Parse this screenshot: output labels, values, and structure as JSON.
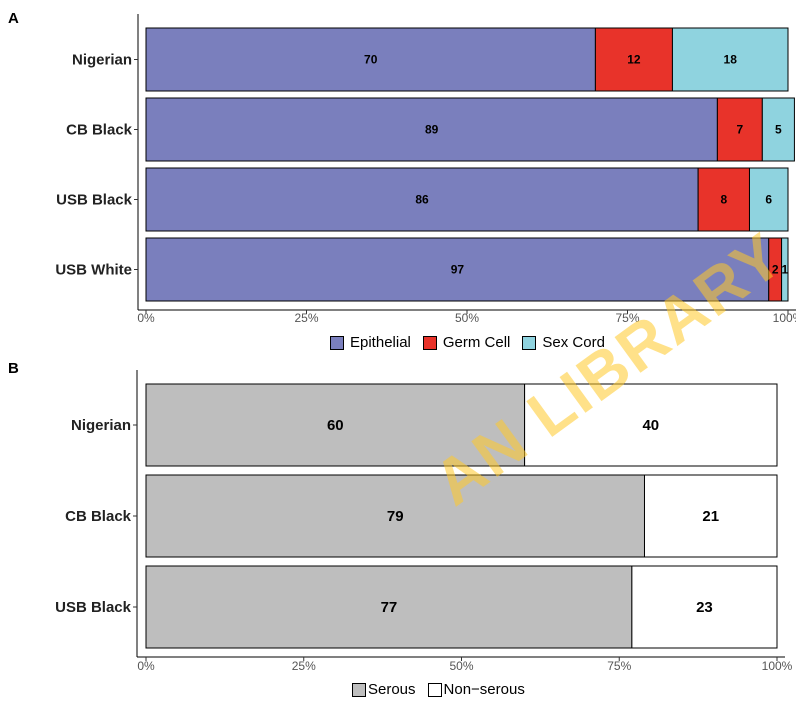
{
  "panels": {
    "a_label": "A",
    "b_label": "B"
  },
  "colors": {
    "epithelial": "#7a7fbd",
    "germ_cell": "#e8332a",
    "sex_cord": "#8fd3df",
    "serous": "#bebebe",
    "non_serous": "#ffffff"
  },
  "chart_data": [
    {
      "type": "bar",
      "orientation": "horizontal",
      "stacked": true,
      "panel": "A",
      "categories": [
        "Nigerian",
        "CB Black",
        "USB Black",
        "USB White"
      ],
      "series": [
        {
          "name": "Epithelial",
          "values": [
            70,
            89,
            86,
            97
          ],
          "color": "#7a7fbd"
        },
        {
          "name": "Germ Cell",
          "values": [
            12,
            7,
            8,
            2
          ],
          "color": "#e8332a"
        },
        {
          "name": "Sex Cord",
          "values": [
            18,
            5,
            6,
            1
          ],
          "color": "#8fd3df"
        }
      ],
      "xlim": [
        0,
        100
      ],
      "x_ticks": [
        "0%",
        "25%",
        "50%",
        "75%",
        "100%"
      ],
      "data_labels": true,
      "legend": "bottom",
      "grid": false
    },
    {
      "type": "bar",
      "orientation": "horizontal",
      "stacked": true,
      "panel": "B",
      "categories": [
        "Nigerian",
        "CB Black",
        "USB Black"
      ],
      "series": [
        {
          "name": "Serous",
          "values": [
            60,
            79,
            77
          ],
          "color": "#bebebe"
        },
        {
          "name": "Non−serous",
          "values": [
            40,
            21,
            23
          ],
          "color": "#ffffff"
        }
      ],
      "xlim": [
        0,
        100
      ],
      "x_ticks": [
        "0%",
        "25%",
        "50%",
        "75%",
        "100%"
      ],
      "data_labels": true,
      "legend": "bottom",
      "grid": false
    }
  ],
  "legend_a": [
    "Epithelial",
    "Germ Cell",
    "Sex Cord"
  ],
  "legend_b": [
    "Serous",
    "Non−serous"
  ],
  "watermark": "AN LIBRARY"
}
